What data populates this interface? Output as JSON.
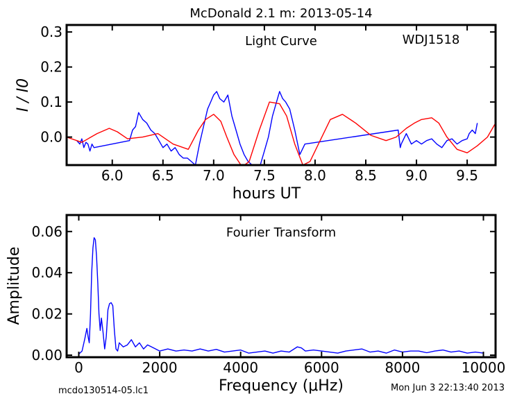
{
  "figure": {
    "title": "McDonald 2.1 m:  2013-05-14",
    "footer_left": "mcdo130514-05.lc1",
    "footer_right": "Mon Jun  3 22:13:40 2013"
  },
  "chart_data": [
    {
      "type": "line",
      "annotation": "Light Curve",
      "object": "WDJ1518",
      "xlabel": "hours UT",
      "ylabel": "I / I0",
      "xlim": [
        5.55,
        9.78
      ],
      "ylim": [
        -0.08,
        0.32
      ],
      "xticks": [
        6.0,
        6.5,
        7.0,
        7.5,
        8.0,
        8.5,
        9.0,
        9.5
      ],
      "xtick_labels": [
        "6.0",
        "6.5",
        "7.0",
        "7.5",
        "8.0",
        "8.5",
        "9.0",
        "9.5"
      ],
      "yticks": [
        0.0,
        0.1,
        0.2,
        0.3
      ],
      "ytick_labels": [
        "0.0",
        "0.1",
        "0.2",
        "0.3"
      ],
      "grid": false,
      "series": [
        {
          "color": "#0000ff",
          "kind": "data",
          "x": [
            5.65,
            5.68,
            5.7,
            5.72,
            5.74,
            5.76,
            5.78,
            5.8,
            5.82,
            6.17,
            6.2,
            6.23,
            6.26,
            6.3,
            6.34,
            6.38,
            6.42,
            6.46,
            6.5,
            6.54,
            6.58,
            6.62,
            6.66,
            6.7,
            6.74,
            6.78,
            6.82,
            6.86,
            6.9,
            6.94,
            6.97,
            7.0,
            7.03,
            7.06,
            7.1,
            7.14,
            7.18,
            7.22,
            7.26,
            7.3,
            7.34,
            7.38,
            7.42,
            7.46,
            7.5,
            7.54,
            7.58,
            7.62,
            7.65,
            7.68,
            7.71,
            7.75,
            7.8,
            7.85,
            7.9,
            8.82,
            8.84,
            8.85,
            8.9,
            8.95,
            9.0,
            9.05,
            9.1,
            9.15,
            9.2,
            9.25,
            9.3,
            9.35,
            9.4,
            9.45,
            9.5,
            9.52,
            9.55,
            9.58,
            9.6
          ],
          "y": [
            -0.01,
            -0.02,
            -0.005,
            -0.03,
            -0.015,
            -0.02,
            -0.04,
            -0.02,
            -0.03,
            -0.01,
            0.02,
            0.03,
            0.07,
            0.05,
            0.04,
            0.02,
            0.01,
            -0.01,
            -0.03,
            -0.02,
            -0.04,
            -0.03,
            -0.05,
            -0.06,
            -0.06,
            -0.07,
            -0.08,
            -0.02,
            0.03,
            0.08,
            0.1,
            0.12,
            0.13,
            0.11,
            0.1,
            0.12,
            0.06,
            0.02,
            -0.02,
            -0.05,
            -0.07,
            -0.08,
            -0.08,
            -0.08,
            -0.04,
            0.0,
            0.06,
            0.1,
            0.13,
            0.11,
            0.1,
            0.08,
            0.02,
            -0.05,
            -0.02,
            0.02,
            -0.03,
            -0.02,
            0.01,
            -0.02,
            -0.01,
            -0.02,
            -0.01,
            -0.005,
            -0.02,
            -0.03,
            -0.01,
            -0.005,
            -0.02,
            -0.01,
            -0.005,
            0.01,
            0.02,
            0.01,
            0.04
          ]
        },
        {
          "color": "#ff0000",
          "kind": "model",
          "x": [
            5.55,
            5.7,
            5.85,
            5.97,
            6.05,
            6.15,
            6.3,
            6.45,
            6.6,
            6.75,
            6.85,
            6.92,
            7.0,
            7.07,
            7.13,
            7.2,
            7.28,
            7.35,
            7.45,
            7.55,
            7.65,
            7.72,
            7.8,
            7.88,
            7.95,
            8.05,
            8.15,
            8.27,
            8.4,
            8.55,
            8.7,
            8.8,
            8.9,
            8.98,
            9.05,
            9.15,
            9.22,
            9.3,
            9.4,
            9.5,
            9.6,
            9.7,
            9.78
          ],
          "y": [
            0.0,
            -0.015,
            0.01,
            0.025,
            0.015,
            -0.005,
            0.0,
            0.01,
            -0.02,
            -0.035,
            0.02,
            0.05,
            0.065,
            0.045,
            0.0,
            -0.05,
            -0.085,
            -0.07,
            0.02,
            0.1,
            0.095,
            0.06,
            -0.02,
            -0.08,
            -0.07,
            -0.01,
            0.05,
            0.065,
            0.04,
            0.005,
            -0.01,
            0.0,
            0.025,
            0.04,
            0.05,
            0.055,
            0.04,
            0.0,
            -0.035,
            -0.045,
            -0.025,
            0.0,
            0.04
          ]
        }
      ]
    },
    {
      "type": "line",
      "annotation": "Fourier Transform",
      "xlabel": "Frequency (μHz)",
      "ylabel": "Amplitude",
      "xlim": [
        -300,
        10300
      ],
      "ylim": [
        -0.001,
        0.068
      ],
      "xticks": [
        0,
        2000,
        4000,
        6000,
        8000,
        10000
      ],
      "xtick_labels": [
        "0",
        "2000",
        "4000",
        "6000",
        "8000",
        "10000"
      ],
      "yticks": [
        0.0,
        0.02,
        0.04,
        0.06
      ],
      "ytick_labels": [
        "0.00",
        "0.02",
        "0.04",
        "0.06"
      ],
      "grid": false,
      "series": [
        {
          "color": "#0000ff",
          "x": [
            0,
            80,
            150,
            200,
            230,
            260,
            290,
            320,
            350,
            380,
            410,
            440,
            470,
            500,
            530,
            560,
            600,
            640,
            680,
            720,
            760,
            800,
            840,
            880,
            920,
            960,
            1000,
            1100,
            1200,
            1300,
            1400,
            1500,
            1600,
            1700,
            1800,
            1900,
            2000,
            2200,
            2400,
            2600,
            2800,
            3000,
            3200,
            3400,
            3600,
            3800,
            4000,
            4200,
            4400,
            4600,
            4800,
            5000,
            5200,
            5400,
            5500,
            5600,
            5800,
            6000,
            6200,
            6400,
            6600,
            6800,
            7000,
            7200,
            7400,
            7600,
            7800,
            8000,
            8200,
            8400,
            8600,
            8800,
            9000,
            9200,
            9400,
            9600,
            9800,
            10000
          ],
          "y": [
            0.0005,
            0.002,
            0.008,
            0.013,
            0.009,
            0.006,
            0.02,
            0.04,
            0.052,
            0.057,
            0.056,
            0.048,
            0.035,
            0.02,
            0.012,
            0.018,
            0.011,
            0.003,
            0.009,
            0.022,
            0.025,
            0.0255,
            0.024,
            0.012,
            0.003,
            0.002,
            0.006,
            0.004,
            0.005,
            0.0075,
            0.004,
            0.006,
            0.003,
            0.005,
            0.004,
            0.003,
            0.002,
            0.003,
            0.002,
            0.0025,
            0.002,
            0.003,
            0.002,
            0.0028,
            0.0015,
            0.002,
            0.0025,
            0.001,
            0.0015,
            0.002,
            0.001,
            0.002,
            0.0015,
            0.004,
            0.0035,
            0.002,
            0.0025,
            0.002,
            0.0015,
            0.001,
            0.002,
            0.0025,
            0.003,
            0.0015,
            0.002,
            0.001,
            0.0025,
            0.0015,
            0.002,
            0.002,
            0.0012,
            0.002,
            0.0025,
            0.0015,
            0.002,
            0.001,
            0.0015,
            0.001
          ]
        }
      ]
    }
  ]
}
